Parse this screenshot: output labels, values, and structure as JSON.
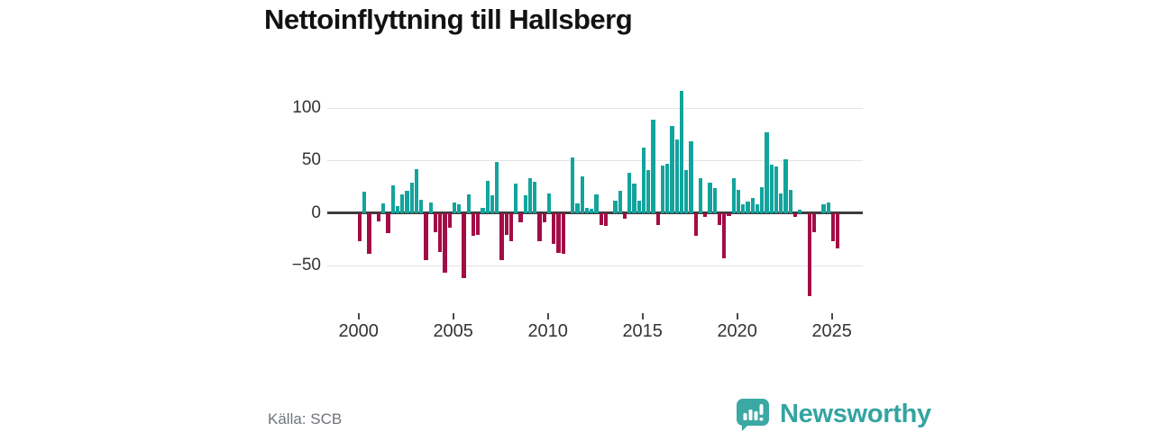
{
  "title": "Nettoinflyttning till Hallsberg",
  "source": "Källa: SCB",
  "brand": {
    "name": "Newsworthy",
    "logo_icon": "bar-chart-speech-bubble-icon"
  },
  "colors": {
    "positive_bar": "#12a49d",
    "negative_bar": "#a30d46",
    "zero_axis": "#3d3d3d",
    "gridline": "#e4e4e4",
    "tick_text": "#333333",
    "title_text": "#121212",
    "source_text": "#70747b",
    "brand_teal": "#33a4a1"
  },
  "chart_data": {
    "type": "bar",
    "title": "Nettoinflyttning till Hallsberg",
    "frequency": "quarterly",
    "x_start": {
      "year": 2000,
      "quarter": 1
    },
    "x_end": {
      "year": 2025,
      "quarter": 2
    },
    "values": [
      -27,
      20,
      -39,
      0,
      -8,
      9,
      -19,
      26,
      7,
      18,
      21,
      29,
      42,
      13,
      -45,
      10,
      -18,
      -37,
      -57,
      -14,
      10,
      8,
      -62,
      18,
      -22,
      -21,
      5,
      31,
      17,
      49,
      -45,
      -21,
      -27,
      28,
      -9,
      17,
      33,
      30,
      -27,
      -9,
      19,
      -29,
      -38,
      -39,
      0,
      53,
      9,
      35,
      5,
      4,
      18,
      -11,
      -12,
      0,
      12,
      21,
      -5,
      38,
      28,
      12,
      62,
      41,
      89,
      -11,
      45,
      47,
      83,
      70,
      116,
      41,
      68,
      -22,
      33,
      -4,
      29,
      24,
      -11,
      -43,
      -3,
      33,
      22,
      8,
      11,
      14,
      8,
      25,
      77,
      46,
      44,
      19,
      51,
      22,
      -4,
      3,
      0,
      -79,
      -18,
      0,
      8,
      10,
      -27,
      -34
    ],
    "x_ticks": [
      2000,
      2005,
      2010,
      2015,
      2020,
      2025
    ],
    "y_ticks": [
      100,
      50,
      0,
      -50
    ],
    "ylim": [
      -90,
      125
    ],
    "grid": true,
    "legend": false,
    "bar_color_rule": "teal positive, crimson negative"
  }
}
